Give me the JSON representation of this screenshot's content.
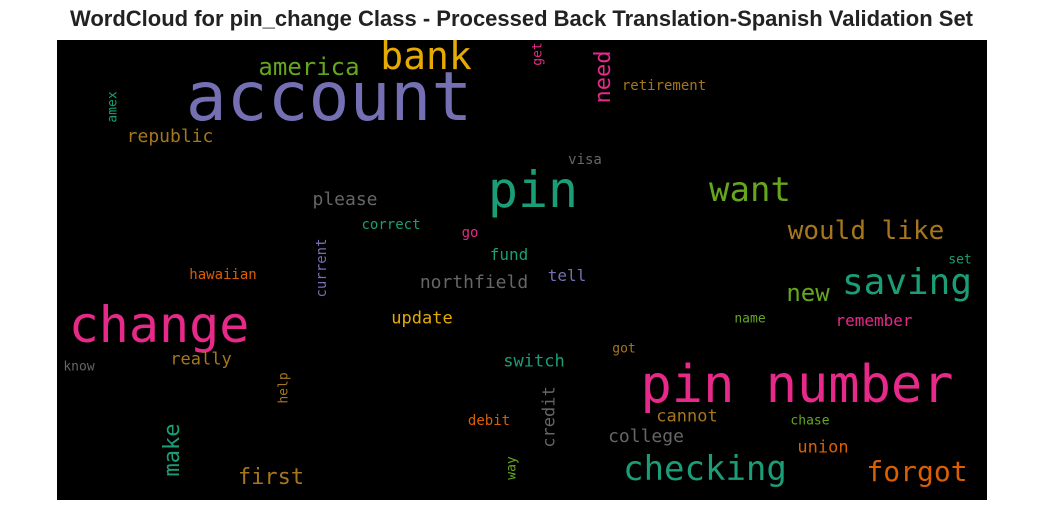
{
  "title": "WordCloud for pin_change Class - Processed Back Translation-Spanish Validation Set",
  "words": [
    {
      "text": "account",
      "color": "#7570b3",
      "vertical": false
    },
    {
      "text": "pin number",
      "color": "#e7298a",
      "vertical": false
    },
    {
      "text": "change",
      "color": "#e7298a",
      "vertical": false
    },
    {
      "text": "pin",
      "color": "#1b9e77",
      "vertical": false
    },
    {
      "text": "bank",
      "color": "#e6ab02",
      "vertical": false
    },
    {
      "text": "checking",
      "color": "#1b9e77",
      "vertical": false
    },
    {
      "text": "saving",
      "color": "#1b9e77",
      "vertical": false
    },
    {
      "text": "want",
      "color": "#66a61e",
      "vertical": false
    },
    {
      "text": "forgot",
      "color": "#d95f02",
      "vertical": false
    },
    {
      "text": "would like",
      "color": "#a6761d",
      "vertical": false
    },
    {
      "text": "america",
      "color": "#66a61e",
      "vertical": false
    },
    {
      "text": "new",
      "color": "#66a61e",
      "vertical": false
    },
    {
      "text": "first",
      "color": "#a6761d",
      "vertical": false
    },
    {
      "text": "need",
      "color": "#e7298a",
      "vertical": true
    },
    {
      "text": "make",
      "color": "#1b9e77",
      "vertical": true
    },
    {
      "text": "northfield",
      "color": "#666666",
      "vertical": false
    },
    {
      "text": "please",
      "color": "#666666",
      "vertical": false
    },
    {
      "text": "college",
      "color": "#666666",
      "vertical": false
    },
    {
      "text": "republic",
      "color": "#a6761d",
      "vertical": false
    },
    {
      "text": "remember",
      "color": "#e7298a",
      "vertical": false
    },
    {
      "text": "update",
      "color": "#e6ab02",
      "vertical": false
    },
    {
      "text": "really",
      "color": "#a6761d",
      "vertical": false
    },
    {
      "text": "switch",
      "color": "#1b9e77",
      "vertical": false
    },
    {
      "text": "credit",
      "color": "#666666",
      "vertical": true
    },
    {
      "text": "cannot",
      "color": "#a6761d",
      "vertical": false
    },
    {
      "text": "union",
      "color": "#d95f02",
      "vertical": false
    },
    {
      "text": "fund",
      "color": "#1b9e77",
      "vertical": false
    },
    {
      "text": "tell",
      "color": "#7570b3",
      "vertical": false
    },
    {
      "text": "current",
      "color": "#7570b3",
      "vertical": true
    },
    {
      "text": "retirement",
      "color": "#a6761d",
      "vertical": false
    },
    {
      "text": "visa",
      "color": "#666666",
      "vertical": false
    },
    {
      "text": "correct",
      "color": "#1b9e77",
      "vertical": false
    },
    {
      "text": "go",
      "color": "#e7298a",
      "vertical": false
    },
    {
      "text": "hawaiian",
      "color": "#d95f02",
      "vertical": false
    },
    {
      "text": "set",
      "color": "#1b9e77",
      "vertical": false
    },
    {
      "text": "name",
      "color": "#66a61e",
      "vertical": false
    },
    {
      "text": "got",
      "color": "#a6761d",
      "vertical": false
    },
    {
      "text": "know",
      "color": "#666666",
      "vertical": false
    },
    {
      "text": "help",
      "color": "#a6761d",
      "vertical": true
    },
    {
      "text": "debit",
      "color": "#d95f02",
      "vertical": false
    },
    {
      "text": "chase",
      "color": "#66a61e",
      "vertical": false
    },
    {
      "text": "way",
      "color": "#66a61e",
      "vertical": true
    },
    {
      "text": "amex",
      "color": "#1b9e77",
      "vertical": true
    },
    {
      "text": "get",
      "color": "#e7298a",
      "vertical": true
    }
  ]
}
